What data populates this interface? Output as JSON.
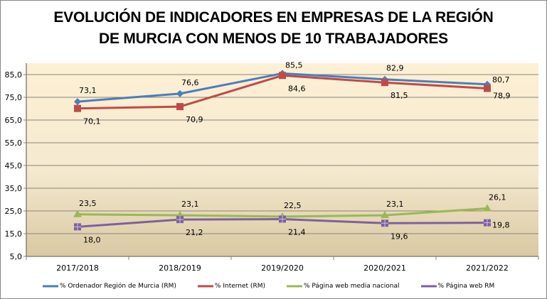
{
  "chart_data": {
    "type": "line",
    "title_lines": [
      "EVOLUCIÓN DE INDICADORES EN EMPRESAS DE LA REGIÓN",
      "DE MURCIA CON MENOS DE 10 TRABAJADORES"
    ],
    "xlabel": "",
    "ylabel": "",
    "categories": [
      "2017/2018",
      "2018/2019",
      "2019/2020",
      "2020/2021",
      "2021/2022"
    ],
    "ylim": [
      5,
      90
    ],
    "yticks": [
      "5,0",
      "15,0",
      "25,0",
      "35,0",
      "45,0",
      "55,0",
      "65,0",
      "75,0",
      "85,0"
    ],
    "ytick_values": [
      5,
      15,
      25,
      35,
      45,
      55,
      65,
      75,
      85
    ],
    "grid": true,
    "legend_position": "bottom",
    "series": [
      {
        "name": "% Ordenador Región de Murcia (RM)",
        "color": "#4a7ebb",
        "marker": "diamond",
        "values": [
          73.1,
          76.6,
          85.5,
          82.9,
          80.7
        ],
        "labels": [
          "73,1",
          "76,6",
          "85,5",
          "82,9",
          "80,7"
        ],
        "label_pos": [
          "above",
          "above",
          "above",
          "above",
          "right"
        ]
      },
      {
        "name": "% Internet (RM)",
        "color": "#be4b48",
        "marker": "square",
        "values": [
          70.1,
          70.9,
          84.6,
          81.5,
          78.9
        ],
        "labels": [
          "70,1",
          "70,9",
          "84,6",
          "81,5",
          "78,9"
        ],
        "label_pos": [
          "below",
          "below",
          "below",
          "below",
          "below-right"
        ]
      },
      {
        "name": "% Página web media nacional",
        "color": "#98b954",
        "marker": "triangle",
        "values": [
          23.5,
          23.1,
          22.5,
          23.1,
          26.1
        ],
        "labels": [
          "23,5",
          "23,1",
          "22,5",
          "23,1",
          "26,1"
        ],
        "label_pos": [
          "above",
          "above",
          "above",
          "above",
          "above"
        ]
      },
      {
        "name": "% Página web RM",
        "color": "#7d60a0",
        "marker": "square-cross",
        "values": [
          18.0,
          21.2,
          21.4,
          19.6,
          19.8
        ],
        "labels": [
          "18,0",
          "21,2",
          "21,4",
          "19,6",
          "19,8"
        ],
        "label_pos": [
          "below",
          "below",
          "below",
          "below",
          "right"
        ]
      }
    ]
  }
}
